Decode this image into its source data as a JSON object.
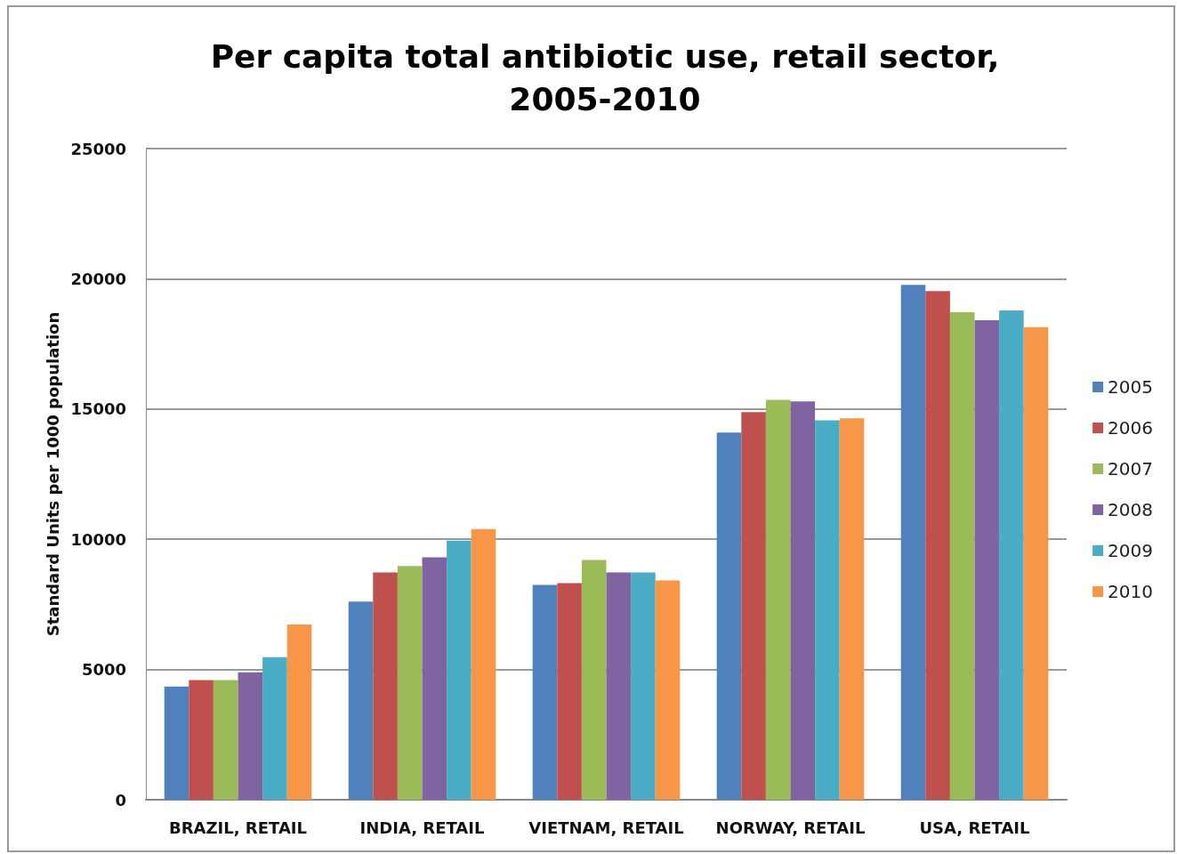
{
  "chart_data": {
    "type": "bar",
    "title": "Per capita total antibiotic use, retail sector,\n2005-2010",
    "ylabel": "Standard Units per 1000 population",
    "categories": [
      "BRAZIL, RETAIL",
      "INDIA, RETAIL",
      "VIETNAM, RETAIL",
      "NORWAY, RETAIL",
      "USA, RETAIL"
    ],
    "series": [
      {
        "name": "2005",
        "color": "#4f81bd",
        "values": [
          4350,
          7610,
          8250,
          14100,
          19770
        ]
      },
      {
        "name": "2006",
        "color": "#c0504d",
        "values": [
          4590,
          8730,
          8320,
          14880,
          19530
        ]
      },
      {
        "name": "2007",
        "color": "#9bbb59",
        "values": [
          4590,
          8970,
          9200,
          15350,
          18720
        ]
      },
      {
        "name": "2008",
        "color": "#8064a2",
        "values": [
          4890,
          9310,
          8730,
          15290,
          18410
        ]
      },
      {
        "name": "2009",
        "color": "#4bacc6",
        "values": [
          5470,
          9950,
          8730,
          14570,
          18780
        ]
      },
      {
        "name": "2010",
        "color": "#f79646",
        "values": [
          6730,
          10390,
          8420,
          14640,
          18140
        ]
      }
    ],
    "ylim": [
      0,
      25000
    ],
    "yticks": [
      0,
      5000,
      10000,
      15000,
      20000,
      25000
    ],
    "grid": "y",
    "legend": "right"
  }
}
